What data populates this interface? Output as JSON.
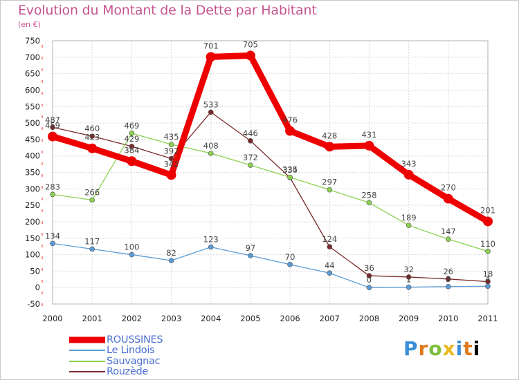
{
  "chart_data": {
    "type": "line",
    "title": "Evolution du Montant de la Dette par Habitant",
    "unit": "(en €)",
    "ylim": [
      -50,
      750
    ],
    "yticks": [
      -50,
      0,
      50,
      100,
      150,
      200,
      250,
      300,
      350,
      400,
      450,
      500,
      550,
      600,
      650,
      700,
      750
    ],
    "x": [
      "2000",
      "2001",
      "2002",
      "2003",
      "2004",
      "2005",
      "2006",
      "2007",
      "2008",
      "2009",
      "2010",
      "2011"
    ],
    "grid": true,
    "legend_position": "bottom-left",
    "series": [
      {
        "name": "ROUSSINES",
        "color": "#ee0000",
        "values": [
          459,
          423,
          384,
          342,
          701,
          705,
          476,
          428,
          431,
          343,
          270,
          201
        ]
      },
      {
        "name": "Le Lindois",
        "color": "#5b9bd5",
        "values": [
          134,
          117,
          100,
          82,
          123,
          97,
          70,
          44,
          0,
          1,
          3,
          4
        ]
      },
      {
        "name": "Sauvagnac",
        "color": "#8cd050",
        "values": [
          283,
          266,
          469,
          435,
          408,
          372,
          335,
          297,
          258,
          189,
          147,
          110
        ]
      },
      {
        "name": "Rouzède",
        "color": "#7a2a2a",
        "values": [
          487,
          460,
          429,
          392,
          533,
          446,
          334,
          124,
          36,
          32,
          26,
          18
        ]
      }
    ]
  },
  "logo": {
    "text": "Proxiti"
  }
}
